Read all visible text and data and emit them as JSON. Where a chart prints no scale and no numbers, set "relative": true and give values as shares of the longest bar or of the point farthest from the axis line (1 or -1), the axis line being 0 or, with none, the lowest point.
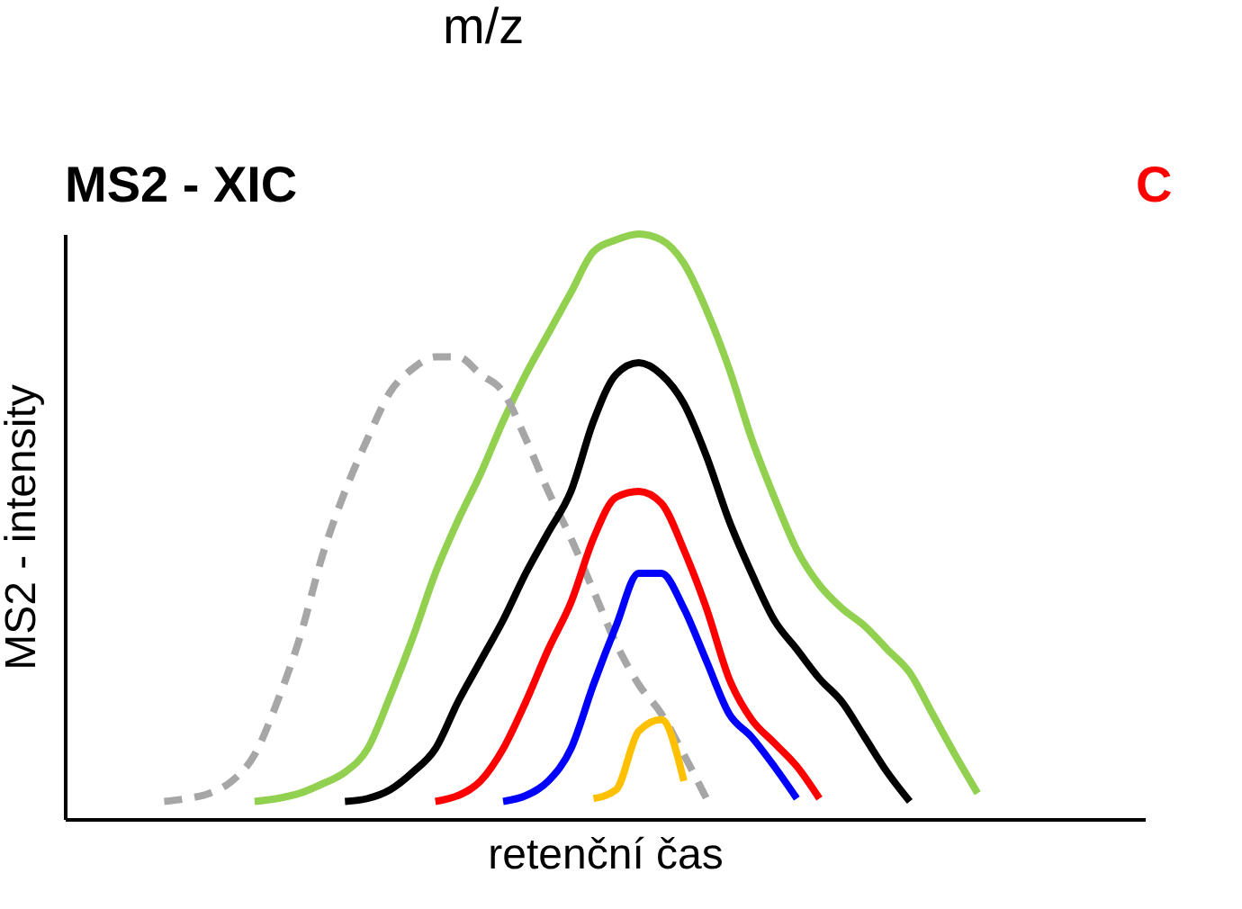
{
  "chart_data": {
    "type": "line",
    "title": "MS2 - XIC",
    "xlabel": "retenční čas",
    "ylabel": "MS2 - intensity",
    "relative": true,
    "tick_labels": false,
    "grid": false,
    "marker": "none",
    "annotations": [
      "m/z",
      "C"
    ],
    "categories": [
      null,
      null,
      null,
      null,
      null,
      null,
      null,
      null,
      null,
      null,
      null,
      null,
      null,
      null,
      null,
      null,
      null,
      null,
      null,
      null,
      null,
      null,
      null,
      null,
      null,
      null,
      null,
      null,
      null,
      null,
      null,
      null,
      null,
      null,
      null,
      null,
      null,
      null,
      null,
      null,
      null,
      null,
      null,
      null,
      null,
      null,
      null,
      null
    ],
    "series": [
      {
        "color": "#92d050",
        "line_style": "solid",
        "values": [
          null,
          null,
          null,
          null,
          null,
          null,
          null,
          null,
          0.03,
          0.035,
          0.044,
          0.06,
          0.08,
          0.12,
          0.21,
          0.31,
          0.42,
          0.51,
          0.59,
          0.68,
          0.76,
          0.83,
          0.9,
          0.97,
          0.99,
          1,
          0.99,
          0.95,
          0.87,
          0.77,
          0.65,
          0.55,
          0.46,
          0.4,
          0.36,
          0.33,
          0.29,
          0.25,
          0.18,
          0.11,
          0.044,
          null,
          null,
          null,
          null,
          null,
          null,
          null
        ]
      },
      {
        "color": "#a6a6a6",
        "line_style": "dashed",
        "values": [
          null,
          null,
          null,
          null,
          0.03,
          0.035,
          0.044,
          0.065,
          0.11,
          0.2,
          0.31,
          0.45,
          0.56,
          0.65,
          0.73,
          0.77,
          0.79,
          0.79,
          0.76,
          0.73,
          0.65,
          0.56,
          0.48,
          0.39,
          0.3,
          0.23,
          0.18,
          0.11,
          0.035,
          null,
          null,
          null,
          null,
          null,
          null,
          null,
          null,
          null,
          null,
          null,
          null,
          null,
          null,
          null,
          null,
          null,
          null,
          null
        ]
      },
      {
        "color": "#000000",
        "line_style": "solid",
        "values": [
          null,
          null,
          null,
          null,
          null,
          null,
          null,
          null,
          null,
          null,
          null,
          null,
          0.03,
          0.035,
          0.05,
          0.08,
          0.12,
          0.2,
          0.27,
          0.34,
          0.42,
          0.49,
          0.56,
          0.68,
          0.76,
          0.78,
          0.76,
          0.71,
          0.62,
          0.51,
          0.42,
          0.34,
          0.29,
          0.24,
          0.2,
          0.14,
          0.08,
          0.03,
          null,
          null,
          null,
          null,
          null,
          null,
          null,
          null,
          null,
          null
        ]
      },
      {
        "color": "#ff0000",
        "line_style": "solid",
        "values": [
          null,
          null,
          null,
          null,
          null,
          null,
          null,
          null,
          null,
          null,
          null,
          null,
          null,
          null,
          null,
          null,
          0.03,
          0.04,
          0.065,
          0.12,
          0.2,
          0.29,
          0.37,
          0.48,
          0.55,
          0.56,
          0.54,
          0.46,
          0.36,
          0.24,
          0.17,
          0.13,
          0.09,
          0.035,
          null,
          null,
          null,
          null,
          null,
          null,
          null,
          null,
          null,
          null,
          null,
          null,
          null,
          null
        ]
      },
      {
        "color": "#0000ff",
        "line_style": "solid",
        "values": [
          null,
          null,
          null,
          null,
          null,
          null,
          null,
          null,
          null,
          null,
          null,
          null,
          null,
          null,
          null,
          null,
          null,
          null,
          null,
          0.03,
          0.04,
          0.065,
          0.12,
          0.23,
          0.33,
          0.42,
          0.42,
          0.36,
          0.27,
          0.18,
          0.14,
          0.09,
          0.035,
          null,
          null,
          null,
          null,
          null,
          null,
          null,
          null,
          null,
          null,
          null,
          null,
          null,
          null,
          null
        ]
      },
      {
        "color": "#ffc000",
        "line_style": "solid",
        "values": [
          null,
          null,
          null,
          null,
          null,
          null,
          null,
          null,
          null,
          null,
          null,
          null,
          null,
          null,
          null,
          null,
          null,
          null,
          null,
          null,
          null,
          null,
          null,
          0.035,
          0.05,
          0.15,
          0.17,
          0.065,
          null,
          null,
          null,
          null,
          null,
          null,
          null,
          null,
          null,
          null,
          null,
          null,
          null,
          null,
          null,
          null,
          null,
          null,
          null,
          null
        ]
      }
    ]
  }
}
